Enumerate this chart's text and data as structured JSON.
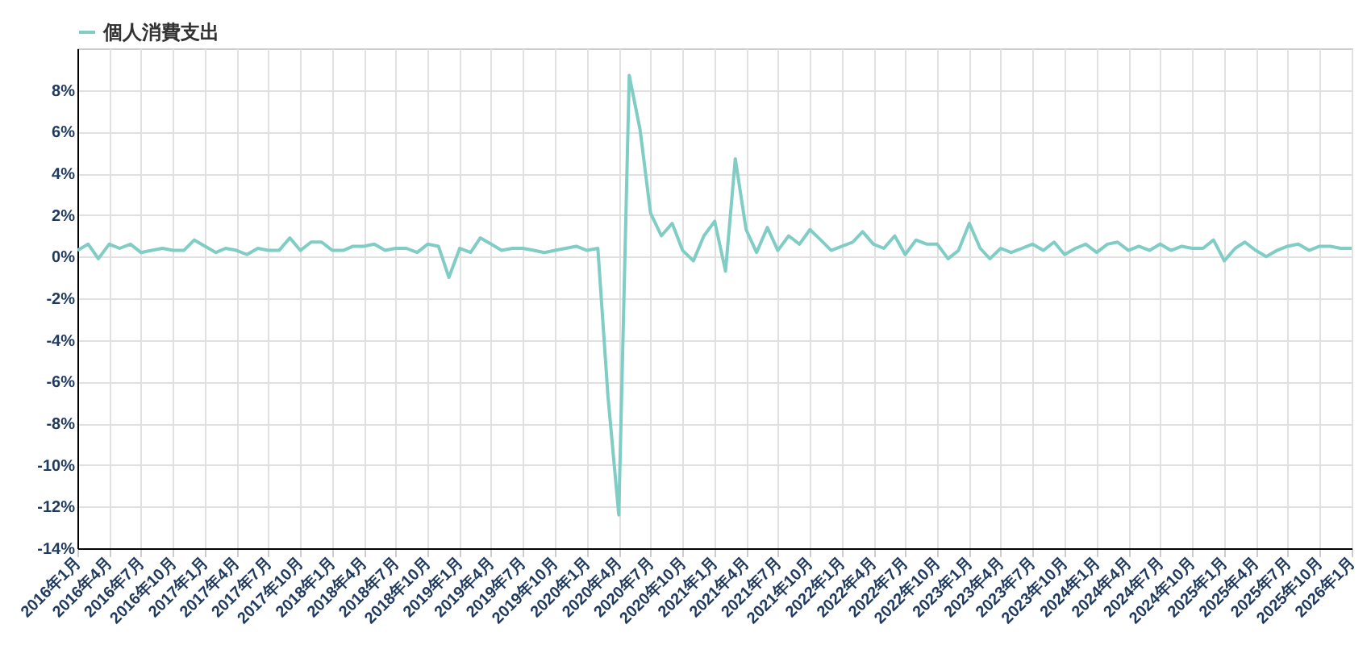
{
  "chart_data": {
    "type": "line",
    "legend": "top",
    "grid": true,
    "x": [
      "2016-01",
      "2016-02",
      "2016-03",
      "2016-04",
      "2016-05",
      "2016-06",
      "2016-07",
      "2016-08",
      "2016-09",
      "2016-10",
      "2016-11",
      "2016-12",
      "2017-01",
      "2017-02",
      "2017-03",
      "2017-04",
      "2017-05",
      "2017-06",
      "2017-07",
      "2017-08",
      "2017-09",
      "2017-10",
      "2017-11",
      "2017-12",
      "2018-01",
      "2018-02",
      "2018-03",
      "2018-04",
      "2018-05",
      "2018-06",
      "2018-07",
      "2018-08",
      "2018-09",
      "2018-10",
      "2018-11",
      "2018-12",
      "2019-01",
      "2019-02",
      "2019-03",
      "2019-04",
      "2019-05",
      "2019-06",
      "2019-07",
      "2019-08",
      "2019-09",
      "2019-10",
      "2019-11",
      "2019-12",
      "2020-01",
      "2020-02",
      "2020-03",
      "2020-04",
      "2020-05",
      "2020-06",
      "2020-07",
      "2020-08",
      "2020-09",
      "2020-10",
      "2020-11",
      "2020-12",
      "2021-01",
      "2021-02",
      "2021-03",
      "2021-04",
      "2021-05",
      "2021-06",
      "2021-07",
      "2021-08",
      "2021-09",
      "2021-10",
      "2021-11",
      "2021-12",
      "2022-01",
      "2022-02",
      "2022-03",
      "2022-04",
      "2022-05",
      "2022-06",
      "2022-07",
      "2022-08",
      "2022-09",
      "2022-10",
      "2022-11",
      "2022-12",
      "2023-01",
      "2023-02",
      "2023-03",
      "2023-04",
      "2023-05",
      "2023-06",
      "2023-07",
      "2023-08",
      "2023-09",
      "2023-10",
      "2023-11",
      "2023-12",
      "2024-01",
      "2024-02",
      "2024-03",
      "2024-04",
      "2024-05",
      "2024-06",
      "2024-07",
      "2024-08",
      "2024-09",
      "2024-10",
      "2024-11",
      "2024-12",
      "2025-01",
      "2025-02",
      "2025-03",
      "2025-04",
      "2025-05",
      "2025-06",
      "2025-07",
      "2025-08",
      "2025-09",
      "2025-10",
      "2025-11",
      "2025-12",
      "2026-01"
    ],
    "series": [
      {
        "name": "個人消費支出",
        "color": "#7fcdc4",
        "values": [
          0.3,
          0.6,
          -0.1,
          0.6,
          0.4,
          0.6,
          0.2,
          0.3,
          0.4,
          0.3,
          0.3,
          0.8,
          0.5,
          0.2,
          0.4,
          0.3,
          0.1,
          0.4,
          0.3,
          0.3,
          0.9,
          0.3,
          0.7,
          0.7,
          0.3,
          0.3,
          0.5,
          0.5,
          0.6,
          0.3,
          0.4,
          0.4,
          0.2,
          0.6,
          0.5,
          -1.0,
          0.4,
          0.2,
          0.9,
          0.6,
          0.3,
          0.4,
          0.4,
          0.3,
          0.2,
          0.3,
          0.4,
          0.5,
          0.3,
          0.4,
          -6.7,
          -12.4,
          8.7,
          6.1,
          2.1,
          1.0,
          1.6,
          0.3,
          -0.2,
          1.0,
          1.7,
          -0.7,
          4.7,
          1.3,
          0.2,
          1.4,
          0.3,
          1.0,
          0.6,
          1.3,
          0.8,
          0.3,
          0.5,
          0.7,
          1.2,
          0.6,
          0.4,
          1.0,
          0.1,
          0.8,
          0.6,
          0.6,
          -0.1,
          0.3,
          1.6,
          0.4,
          -0.1,
          0.4,
          0.2,
          0.4,
          0.6,
          0.3,
          0.7,
          0.1,
          0.4,
          0.6,
          0.2,
          0.6,
          0.7,
          0.3,
          0.5,
          0.3,
          0.6,
          0.3,
          0.5,
          0.4,
          0.4,
          0.8,
          -0.2,
          0.4,
          0.7,
          0.3,
          0.0,
          0.3,
          0.5,
          0.6,
          0.3,
          0.5,
          0.5,
          0.4,
          0.4
        ]
      }
    ],
    "xlim": [
      "2016-01",
      "2026-01"
    ],
    "xticks": [
      {
        "value": "2016-01",
        "label": "2016年1月"
      },
      {
        "value": "2016-04",
        "label": "2016年4月"
      },
      {
        "value": "2016-07",
        "label": "2016年7月"
      },
      {
        "value": "2016-10",
        "label": "2016年10月"
      },
      {
        "value": "2017-01",
        "label": "2017年1月"
      },
      {
        "value": "2017-04",
        "label": "2017年4月"
      },
      {
        "value": "2017-07",
        "label": "2017年7月"
      },
      {
        "value": "2017-10",
        "label": "2017年10月"
      },
      {
        "value": "2018-01",
        "label": "2018年1月"
      },
      {
        "value": "2018-04",
        "label": "2018年4月"
      },
      {
        "value": "2018-07",
        "label": "2018年7月"
      },
      {
        "value": "2018-10",
        "label": "2018年10月"
      },
      {
        "value": "2019-01",
        "label": "2019年1月"
      },
      {
        "value": "2019-04",
        "label": "2019年4月"
      },
      {
        "value": "2019-07",
        "label": "2019年7月"
      },
      {
        "value": "2019-10",
        "label": "2019年10月"
      },
      {
        "value": "2020-01",
        "label": "2020年1月"
      },
      {
        "value": "2020-04",
        "label": "2020年4月"
      },
      {
        "value": "2020-07",
        "label": "2020年7月"
      },
      {
        "value": "2020-10",
        "label": "2020年10月"
      },
      {
        "value": "2021-01",
        "label": "2021年1月"
      },
      {
        "value": "2021-04",
        "label": "2021年4月"
      },
      {
        "value": "2021-07",
        "label": "2021年7月"
      },
      {
        "value": "2021-10",
        "label": "2021年10月"
      },
      {
        "value": "2022-01",
        "label": "2022年1月"
      },
      {
        "value": "2022-04",
        "label": "2022年4月"
      },
      {
        "value": "2022-07",
        "label": "2022年7月"
      },
      {
        "value": "2022-10",
        "label": "2022年10月"
      },
      {
        "value": "2023-01",
        "label": "2023年1月"
      },
      {
        "value": "2023-04",
        "label": "2023年4月"
      },
      {
        "value": "2023-07",
        "label": "2023年7月"
      },
      {
        "value": "2023-10",
        "label": "2023年10月"
      },
      {
        "value": "2024-01",
        "label": "2024年1月"
      },
      {
        "value": "2024-04",
        "label": "2024年4月"
      },
      {
        "value": "2024-07",
        "label": "2024年7月"
      },
      {
        "value": "2024-10",
        "label": "2024年10月"
      },
      {
        "value": "2025-01",
        "label": "2025年1月"
      },
      {
        "value": "2025-04",
        "label": "2025年4月"
      },
      {
        "value": "2025-07",
        "label": "2025年7月"
      },
      {
        "value": "2025-10",
        "label": "2025年10月"
      },
      {
        "value": "2026-01",
        "label": "2026年1月"
      }
    ],
    "ylim": [
      -14,
      10
    ],
    "yticks": [
      {
        "value": -14,
        "label": "-14%"
      },
      {
        "value": -12,
        "label": "-12%"
      },
      {
        "value": -10,
        "label": "-10%"
      },
      {
        "value": -8,
        "label": "-8%"
      },
      {
        "value": -6,
        "label": "-6%"
      },
      {
        "value": -4,
        "label": "-4%"
      },
      {
        "value": -2,
        "label": "-2%"
      },
      {
        "value": 0,
        "label": "0%"
      },
      {
        "value": 2,
        "label": "2%"
      },
      {
        "value": 4,
        "label": "4%"
      },
      {
        "value": 6,
        "label": "6%"
      },
      {
        "value": 8,
        "label": "8%"
      }
    ]
  }
}
